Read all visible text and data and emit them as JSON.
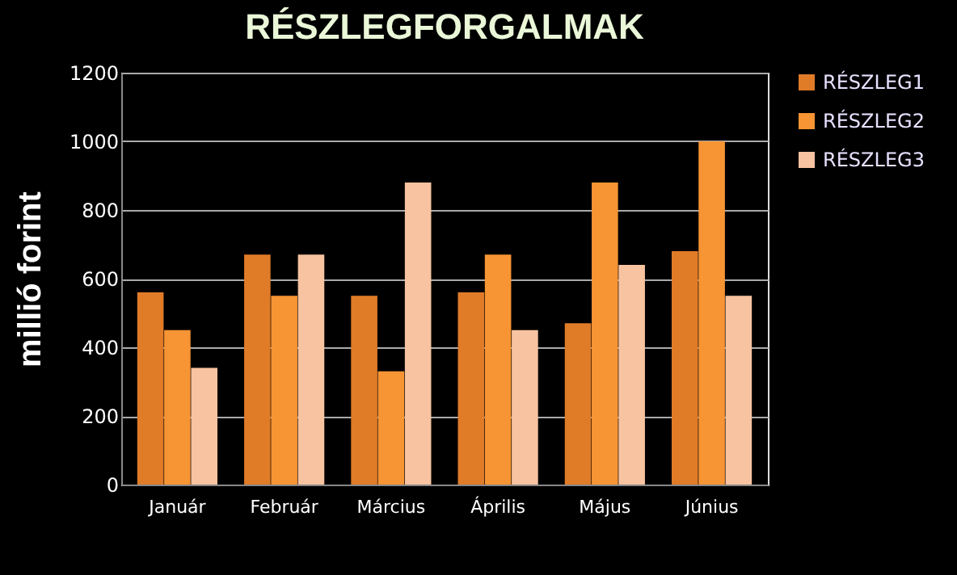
{
  "chart_data": {
    "type": "bar",
    "title": "RÉSZLEGFORGALMAK",
    "ylabel": "millió forint",
    "categories": [
      "Január",
      "Február",
      "Március",
      "Április",
      "Május",
      "Június"
    ],
    "series": [
      {
        "name": "RÉSZLEG1",
        "color": "#e07b28",
        "values": [
          560,
          670,
          550,
          560,
          470,
          680
        ]
      },
      {
        "name": "RÉSZLEG2",
        "color": "#f79433",
        "values": [
          450,
          550,
          330,
          670,
          880,
          1000
        ]
      },
      {
        "name": "RÉSZLEG3",
        "color": "#f8c3a0",
        "values": [
          340,
          670,
          880,
          450,
          640,
          550
        ]
      }
    ],
    "ylim": [
      0,
      1200
    ],
    "yticks": [
      0,
      200,
      400,
      600,
      800,
      1000,
      1200
    ],
    "grid": "y",
    "legend": "right"
  }
}
